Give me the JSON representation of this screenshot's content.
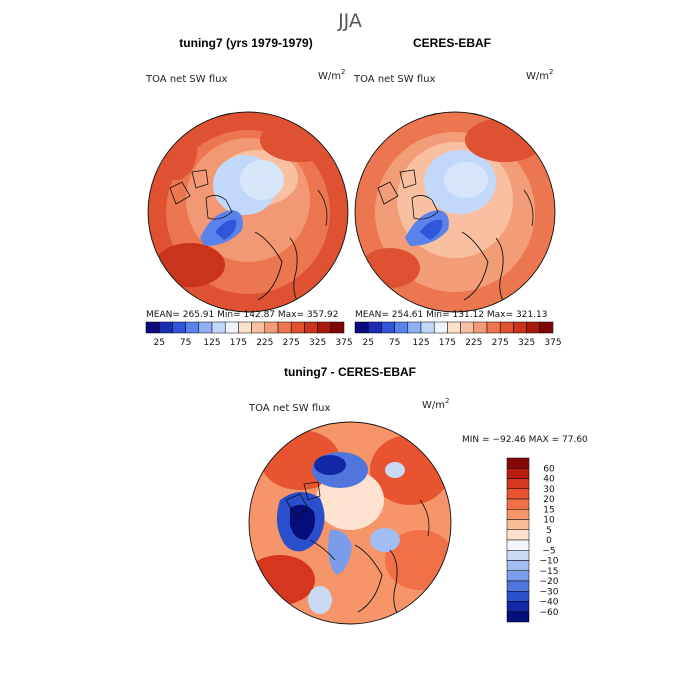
{
  "season": "JJA",
  "chart_data": [
    {
      "type": "heatmap",
      "title": "tuning7 (yrs 1979-1979)",
      "variable": "TOA net SW flux",
      "units": "W/m",
      "units_sup": "2",
      "stats": {
        "mean_label": "MEAN=",
        "mean": "265.91",
        "min_label": "Min=",
        "min": "142.87",
        "max_label": "Max=",
        "max": "357.92"
      },
      "colorbar": {
        "ticks": [
          "25",
          "75",
          "125",
          "175",
          "225",
          "275",
          "325",
          "375"
        ],
        "colors": [
          "#0a0a7e",
          "#1c2cb0",
          "#2f55d8",
          "#5a82ec",
          "#8fb0f4",
          "#c2d8fb",
          "#eef3fc",
          "#fbe0cc",
          "#f8c0a0",
          "#f39c78",
          "#ec7650",
          "#de5232",
          "#c8341c",
          "#a61a0c",
          "#7c0806"
        ]
      }
    },
    {
      "type": "heatmap",
      "title": "CERES-EBAF",
      "variable": "TOA net SW flux",
      "units": "W/m",
      "units_sup": "2",
      "stats": {
        "mean_label": "MEAN=",
        "mean": "254.61",
        "min_label": "Min=",
        "min": "131.12",
        "max_label": "Max=",
        "max": "321.13"
      },
      "colorbar": {
        "ticks": [
          "25",
          "75",
          "125",
          "175",
          "225",
          "275",
          "325",
          "375"
        ],
        "colors": [
          "#0a0a7e",
          "#1c2cb0",
          "#2f55d8",
          "#5a82ec",
          "#8fb0f4",
          "#c2d8fb",
          "#eef3fc",
          "#fbe0cc",
          "#f8c0a0",
          "#f39c78",
          "#ec7650",
          "#de5232",
          "#c8341c",
          "#a61a0c",
          "#7c0806"
        ]
      }
    },
    {
      "type": "heatmap",
      "title": "tuning7 - CERES-EBAF",
      "variable": "TOA net SW flux",
      "units": "W/m",
      "units_sup": "2",
      "stats": {
        "min_label": "MIN =",
        "min": "−92.46",
        "max_label": "MAX =",
        "max": "77.60"
      },
      "colorbar": {
        "ticks": [
          "60",
          "40",
          "30",
          "20",
          "15",
          "10",
          "5",
          "0",
          "−5",
          "−10",
          "−15",
          "−20",
          "−30",
          "−40",
          "−60"
        ],
        "colors": [
          "#860808",
          "#b61c10",
          "#d6361e",
          "#e8542f",
          "#f07048",
          "#f6946a",
          "#f9bb98",
          "#fce2cf",
          "#f3f5fb",
          "#c9daf7",
          "#a1bdf1",
          "#7b9cea",
          "#5076de",
          "#2a4fcc",
          "#1228a6",
          "#050d7a"
        ]
      }
    }
  ]
}
